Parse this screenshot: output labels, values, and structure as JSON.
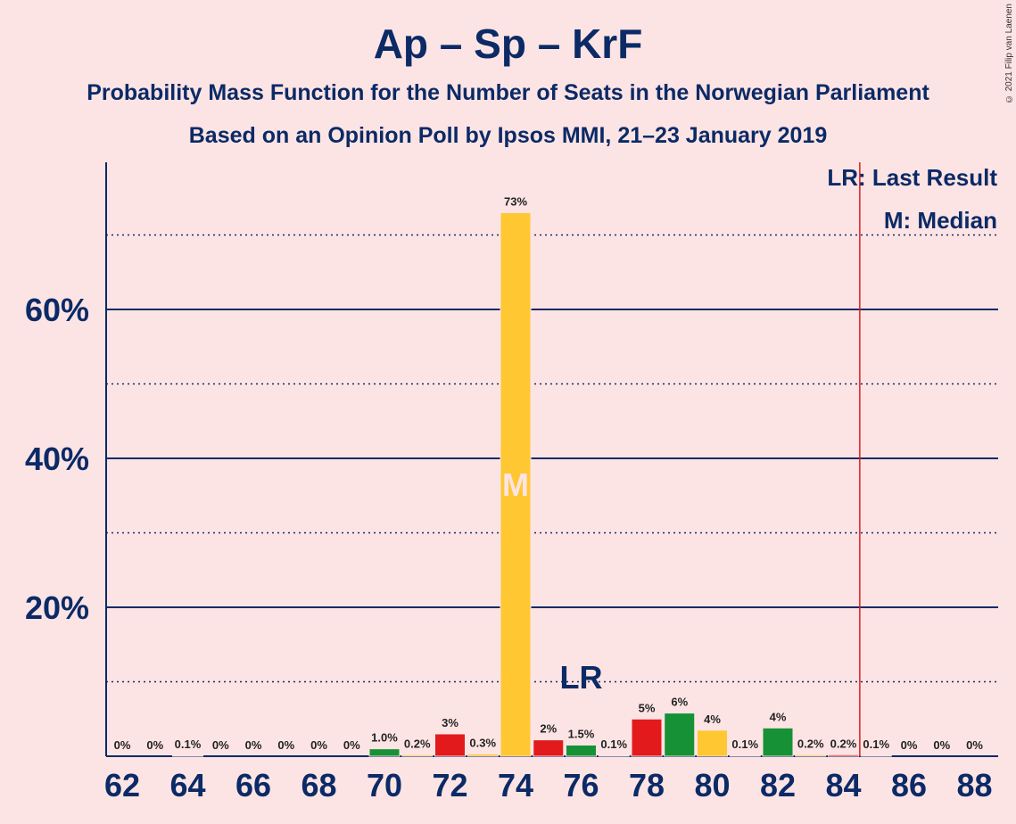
{
  "chart_data": {
    "type": "bar",
    "title": "Ap – Sp – KrF",
    "subtitle_line1": "Probability Mass Function for the Number of Seats in the Norwegian Parliament",
    "subtitle_line2": "Based on an Opinion Poll by Ipsos MMI, 21–23 January 2019",
    "copyright": "© 2021 Filip van Laenen",
    "legend": {
      "last_result": "LR: Last Result",
      "median": "M: Median",
      "placement": "top-right"
    },
    "ylim": [
      0,
      80
    ],
    "y_ticks_solid": [
      20,
      40,
      60
    ],
    "y_ticks_dotted": [
      10,
      30,
      50,
      70
    ],
    "y_tick_labels": [
      "20%",
      "40%",
      "60%"
    ],
    "x_tick_labels": [
      "62",
      "64",
      "66",
      "68",
      "70",
      "72",
      "74",
      "76",
      "78",
      "80",
      "82",
      "84",
      "86",
      "88"
    ],
    "seats": [
      62,
      63,
      64,
      65,
      66,
      67,
      68,
      69,
      70,
      71,
      72,
      73,
      74,
      75,
      76,
      77,
      78,
      79,
      80,
      81,
      82,
      83,
      84,
      85,
      86,
      87,
      88
    ],
    "values": [
      0,
      0,
      0.1,
      0,
      0,
      0,
      0,
      0,
      1.0,
      0.2,
      3,
      0.3,
      73,
      2.2,
      1.5,
      0.1,
      5,
      5.8,
      3.5,
      0.1,
      3.8,
      0.2,
      0.2,
      0.1,
      0,
      0,
      0
    ],
    "value_labels": [
      "0%",
      "0%",
      "0.1%",
      "0%",
      "0%",
      "0%",
      "0%",
      "0%",
      "1.0%",
      "0.2%",
      "3%",
      "0.3%",
      "73%",
      "2%",
      "1.5%",
      "0.1%",
      "5%",
      "6%",
      "4%",
      "0.1%",
      "4%",
      "0.2%",
      "0.2%",
      "0.1%",
      "0%",
      "0%",
      "0%"
    ],
    "bar_colors": [
      "#e31a1c",
      "#ffc732",
      "#e31a1c",
      "#ffc732",
      "#e31a1c",
      "#ffc732",
      "#e31a1c",
      "#ffc732",
      "#179136",
      "#ffc732",
      "#e31a1c",
      "#ffc732",
      "#ffc732",
      "#e31a1c",
      "#179136",
      "#ffc732",
      "#e31a1c",
      "#179136",
      "#ffc732",
      "#e31a1c",
      "#179136",
      "#ffc732",
      "#e31a1c",
      "#179136",
      "#ffc732",
      "#e31a1c",
      "#179136"
    ],
    "median_seat": 74,
    "median_label": "M",
    "last_result_seat": 76,
    "last_result_label": "LR",
    "majority_line_seat": 84.5,
    "colors": {
      "axis": "#0b2a66",
      "majority_line": "#e31a1c",
      "background": "#fde4e4",
      "median_text": "#fde4e4"
    }
  }
}
